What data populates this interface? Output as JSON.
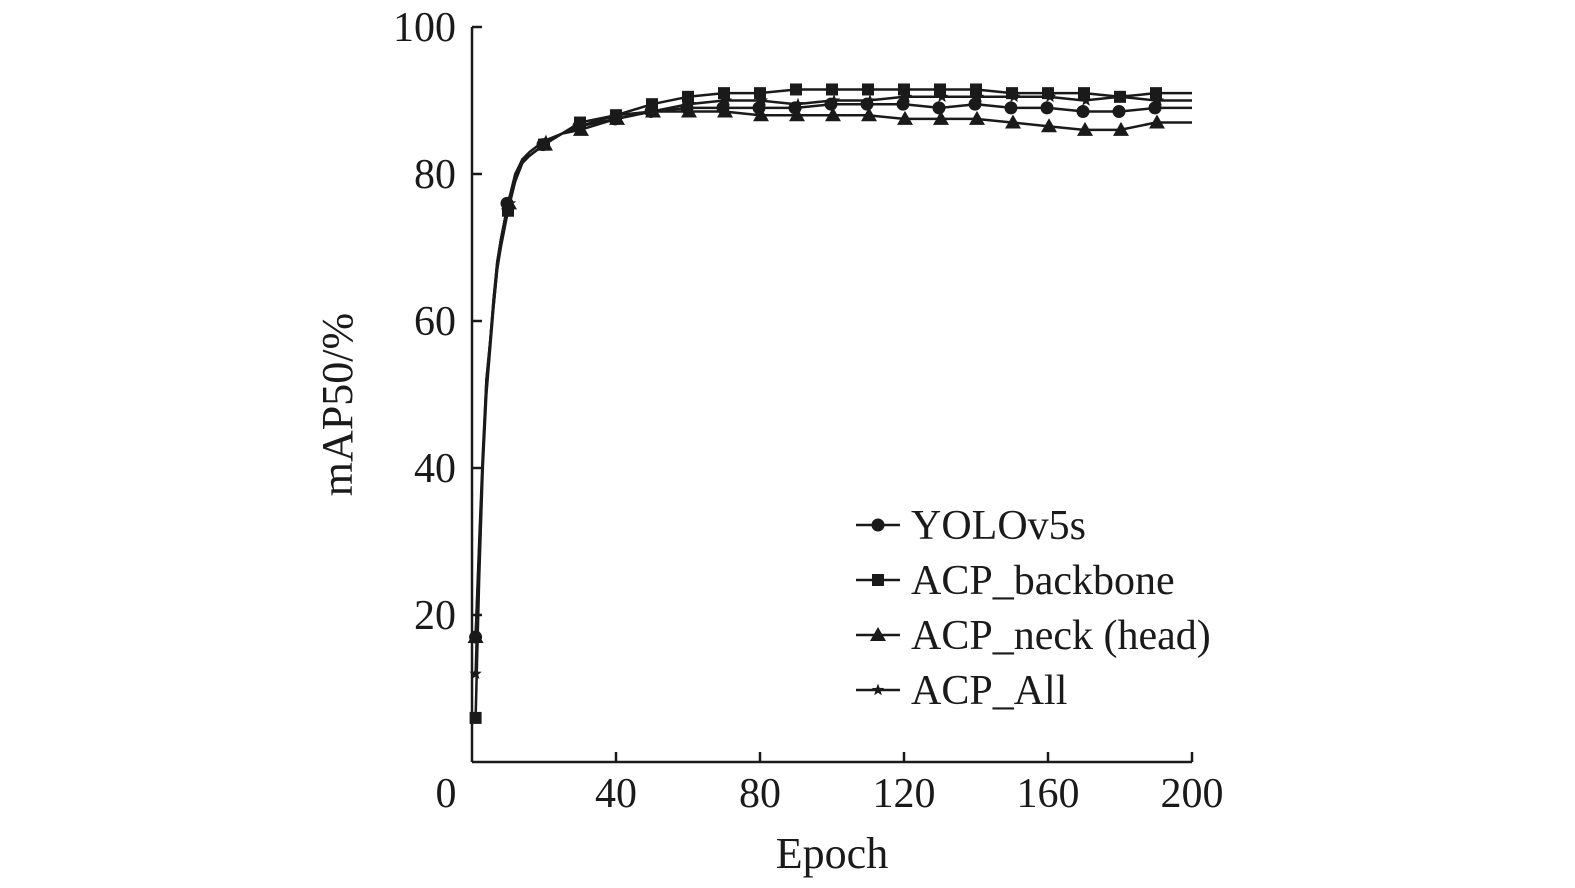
{
  "chart_data": {
    "type": "line",
    "xlabel": "Epoch",
    "ylabel": "mAP50/%",
    "xlim": [
      0,
      200
    ],
    "ylim": [
      0,
      100
    ],
    "x_ticks": [
      0,
      40,
      80,
      120,
      160,
      200
    ],
    "y_ticks": [
      20,
      40,
      60,
      80,
      100
    ],
    "grid": false,
    "legend_position": "bottom-right",
    "x": [
      1,
      2,
      3,
      4,
      5,
      6,
      7,
      8,
      10,
      12,
      14,
      16,
      20,
      25,
      30,
      40,
      50,
      60,
      70,
      80,
      90,
      100,
      110,
      120,
      130,
      140,
      150,
      160,
      170,
      180,
      190,
      200
    ],
    "series": [
      {
        "name": "YOLOv5s",
        "marker": "circle",
        "values": [
          17,
          30,
          42,
          52,
          57,
          63,
          68,
          71,
          76,
          80,
          82,
          82.5,
          84,
          85.5,
          86.5,
          87.5,
          88.5,
          89,
          89,
          89,
          89,
          89.5,
          89.5,
          89.5,
          89,
          89.5,
          89,
          89,
          88.5,
          88.5,
          89,
          89
        ]
      },
      {
        "name": "ACP_backbone",
        "marker": "square",
        "values": [
          6,
          25,
          40,
          50,
          56,
          62,
          67,
          70,
          75,
          79,
          82,
          82.5,
          84,
          85.5,
          87,
          88,
          89.5,
          90.5,
          91,
          91,
          91.5,
          91.5,
          91.5,
          91.5,
          91.5,
          91.5,
          91,
          91,
          91,
          90.5,
          91,
          91
        ]
      },
      {
        "name": "ACP_neck (head)",
        "marker": "triangle",
        "values": [
          17,
          29,
          41,
          51,
          57,
          63,
          68,
          71,
          76,
          79,
          81.5,
          82.5,
          84,
          85.5,
          86,
          87.5,
          88.5,
          88.5,
          88.5,
          88,
          88,
          88,
          88,
          87.5,
          87.5,
          87.5,
          87,
          86.5,
          86,
          86,
          87,
          87
        ]
      },
      {
        "name": "ACP_All",
        "marker": "star",
        "values": [
          12,
          28,
          41,
          52,
          57,
          62,
          67,
          71,
          76,
          79.5,
          82,
          83,
          84.5,
          85.5,
          86.5,
          88,
          88.5,
          89.5,
          90,
          90,
          89.5,
          90,
          90,
          90.5,
          90.5,
          90.5,
          90.5,
          90.5,
          90,
          90.5,
          90,
          90
        ]
      }
    ]
  }
}
